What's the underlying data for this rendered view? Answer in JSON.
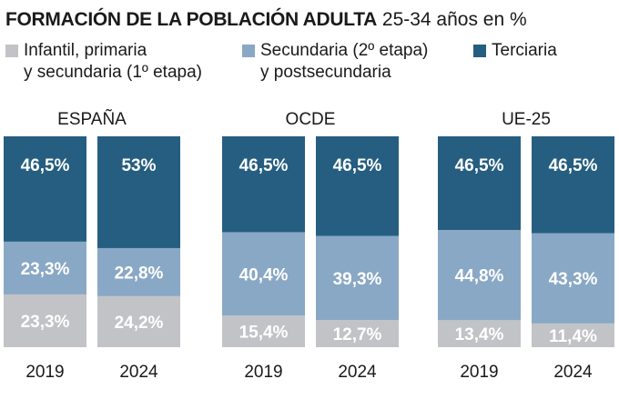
{
  "title": "FORMACIÓN DE LA POBLACIÓN ADULTA",
  "subtitle": "25-34 años en %",
  "colors": {
    "infantil": "#c2c3c6",
    "secundaria": "#89a8c5",
    "terciaria": "#255e80"
  },
  "chart_data": {
    "type": "bar",
    "stacked": true,
    "title": "FORMACIÓN DE LA POBLACIÓN ADULTA",
    "subtitle": "25-34 años en %",
    "legend": [
      "Infantil, primaria\ny secundaria (1º etapa)",
      "Secundaria (2º etapa)\ny postsecundaria",
      "Terciaria"
    ],
    "legend_position": "top",
    "groups": [
      {
        "name": "ESPAÑA",
        "bars": [
          {
            "year": "2019",
            "infantil": 23.3,
            "secundaria": 23.3,
            "terciaria": 46.5,
            "labels": [
              "23,3%",
              "23,3%",
              "46,5%"
            ]
          },
          {
            "year": "2024",
            "infantil": 24.2,
            "secundaria": 22.8,
            "terciaria": 53,
            "labels": [
              "24,2%",
              "22,8%",
              "53%"
            ]
          }
        ]
      },
      {
        "name": "OCDE",
        "bars": [
          {
            "year": "2019",
            "infantil": 15.4,
            "secundaria": 40.4,
            "terciaria": 46.5,
            "labels": [
              "15,4%",
              "40,4%",
              "46,5%"
            ]
          },
          {
            "year": "2024",
            "infantil": 12.7,
            "secundaria": 39.3,
            "terciaria": 46.5,
            "labels": [
              "12,7%",
              "39,3%",
              "46,5%"
            ]
          }
        ]
      },
      {
        "name": "UE-25",
        "bars": [
          {
            "year": "2019",
            "infantil": 13.4,
            "secundaria": 44.8,
            "terciaria": 46.5,
            "labels": [
              "13,4%",
              "44,8%",
              "46,5%"
            ]
          },
          {
            "year": "2024",
            "infantil": 11.4,
            "secundaria": 43.3,
            "terciaria": 46.5,
            "labels": [
              "11,4%",
              "43,3%",
              "46,5%"
            ]
          }
        ]
      }
    ]
  }
}
